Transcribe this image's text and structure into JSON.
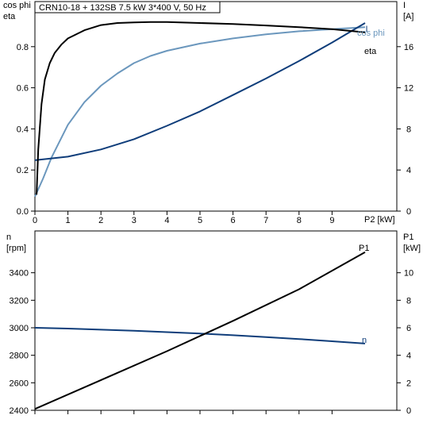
{
  "title": "CRN10-18 + 132SB   7.5 kW   3*400 V, 50 Hz",
  "colors": {
    "eta": "#000000",
    "cos_phi": "#6b97bd",
    "current": "#0f3d7a",
    "n": "#0f3d7a",
    "p1": "#000000"
  },
  "chart_data": [
    {
      "type": "line",
      "xlabel": "P2 [kW]",
      "xlim": [
        0,
        10
      ],
      "xticks": [
        0,
        1,
        2,
        3,
        4,
        5,
        6,
        7,
        8,
        9
      ],
      "left_axis": {
        "label_lines": [
          "cos phi",
          "eta"
        ],
        "lim": [
          0,
          1.0
        ],
        "ticks": [
          "0.0",
          "0.2",
          "0.4",
          "0.6",
          "0.8"
        ]
      },
      "right_axis": {
        "label_lines": [
          "I",
          "[A]"
        ],
        "lim": [
          0,
          20
        ],
        "ticks": [
          "0",
          "4",
          "8",
          "12",
          "16"
        ]
      },
      "grid": false,
      "series": [
        {
          "name": "eta",
          "axis": "left",
          "color": "#000000",
          "x": [
            0.05,
            0.1,
            0.2,
            0.3,
            0.45,
            0.6,
            0.8,
            1.0,
            1.5,
            2.0,
            2.5,
            3.0,
            3.5,
            4.0,
            5.0,
            6.0,
            7.0,
            8.0,
            9.0,
            10.0
          ],
          "y": [
            0.08,
            0.3,
            0.52,
            0.64,
            0.72,
            0.77,
            0.81,
            0.84,
            0.88,
            0.905,
            0.915,
            0.918,
            0.92,
            0.92,
            0.915,
            0.91,
            0.903,
            0.895,
            0.885,
            0.87
          ]
        },
        {
          "name": "cos phi",
          "axis": "left",
          "color": "#6b97bd",
          "x": [
            0,
            0.25,
            0.5,
            0.75,
            1.0,
            1.5,
            2.0,
            2.5,
            3.0,
            3.5,
            4.0,
            5.0,
            6.0,
            7.0,
            8.0,
            9.0,
            10.0
          ],
          "y": [
            0.07,
            0.16,
            0.26,
            0.34,
            0.42,
            0.53,
            0.61,
            0.67,
            0.72,
            0.755,
            0.78,
            0.815,
            0.84,
            0.86,
            0.875,
            0.885,
            0.895
          ]
        },
        {
          "name": "I",
          "axis": "right",
          "color": "#0f3d7a",
          "x": [
            0,
            1,
            2,
            3,
            4,
            5,
            6,
            7,
            8,
            9,
            10
          ],
          "y": [
            4.95,
            5.3,
            6.0,
            7.0,
            8.3,
            9.7,
            11.3,
            12.9,
            14.6,
            16.4,
            18.3
          ]
        }
      ]
    },
    {
      "type": "line",
      "xlim": [
        0,
        10
      ],
      "left_axis": {
        "label_lines": [
          "n",
          "[rpm]"
        ],
        "lim": [
          2400,
          3600
        ],
        "ticks": [
          "2400",
          "2600",
          "2800",
          "3000",
          "3200",
          "3400"
        ]
      },
      "right_axis": {
        "label_lines": [
          "P1",
          "[kW]"
        ],
        "lim": [
          0,
          12
        ],
        "ticks": [
          "0",
          "2",
          "4",
          "6",
          "8",
          "10"
        ]
      },
      "grid": false,
      "series": [
        {
          "name": "n",
          "axis": "left",
          "color": "#0f3d7a",
          "x": [
            0,
            1,
            2,
            3,
            4,
            5,
            6,
            7,
            8,
            9,
            10
          ],
          "y": [
            3000,
            2994,
            2986,
            2978,
            2968,
            2958,
            2946,
            2932,
            2918,
            2902,
            2885
          ]
        },
        {
          "name": "P1",
          "axis": "right",
          "color": "#000000",
          "x": [
            0,
            2,
            4,
            6,
            8,
            10
          ],
          "y": [
            0.1,
            2.2,
            4.3,
            6.5,
            8.8,
            11.5
          ]
        }
      ]
    }
  ]
}
